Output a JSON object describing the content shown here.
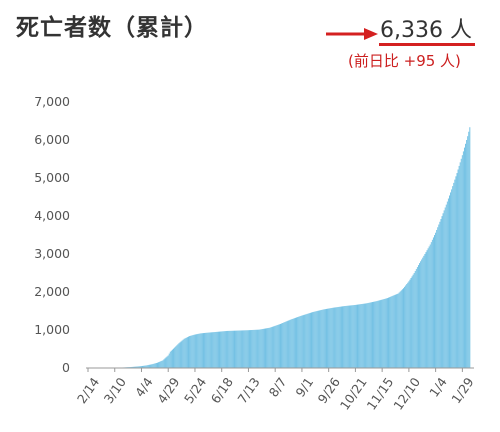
{
  "header": {
    "title": "死亡者数（累計）",
    "total": "6,336 人",
    "diff": "(前日比 +95 人)"
  },
  "colors": {
    "bar": "#73c1e4",
    "accent_red": "#d42020",
    "axis": "#999999",
    "grid": "#e6e6e6"
  },
  "chart_data": {
    "type": "bar",
    "ylim": [
      0,
      7000
    ],
    "yticks": [
      0,
      1000,
      2000,
      3000,
      4000,
      5000,
      6000,
      7000
    ],
    "ytick_labels": [
      "0",
      "1,000",
      "2,000",
      "3,000",
      "4,000",
      "5,000",
      "6,000",
      "7,000"
    ],
    "xtick_labels": [
      "2/14",
      "3/10",
      "4/4",
      "4/29",
      "5/24",
      "6/18",
      "7/13",
      "8/7",
      "9/1",
      "9/26",
      "10/21",
      "11/15",
      "12/10",
      "1/4",
      "1/29"
    ],
    "xtick_days": [
      0,
      25,
      50,
      75,
      100,
      125,
      150,
      175,
      200,
      225,
      250,
      275,
      300,
      325,
      350
    ],
    "x_unit": "days since 2/14",
    "grid": false,
    "series": [
      {
        "name": "死亡者数（累計）",
        "x": [
          0,
          20,
          25,
          30,
          40,
          50,
          55,
          60,
          65,
          70,
          73,
          75,
          77,
          80,
          85,
          90,
          95,
          100,
          105,
          110,
          120,
          130,
          140,
          150,
          160,
          170,
          180,
          190,
          200,
          210,
          220,
          230,
          240,
          250,
          260,
          270,
          280,
          290,
          295,
          300,
          305,
          310,
          315,
          320,
          325,
          330,
          335,
          340,
          345,
          350,
          355,
          357
        ],
        "values": [
          0,
          2,
          5,
          10,
          25,
          50,
          70,
          100,
          140,
          200,
          280,
          330,
          430,
          510,
          650,
          770,
          840,
          880,
          910,
          925,
          950,
          975,
          985,
          995,
          1010,
          1060,
          1160,
          1280,
          1380,
          1470,
          1540,
          1590,
          1630,
          1660,
          1700,
          1760,
          1840,
          1960,
          2100,
          2280,
          2500,
          2760,
          3000,
          3250,
          3560,
          3920,
          4300,
          4700,
          5130,
          5600,
          6100,
          6336
        ]
      }
    ]
  }
}
